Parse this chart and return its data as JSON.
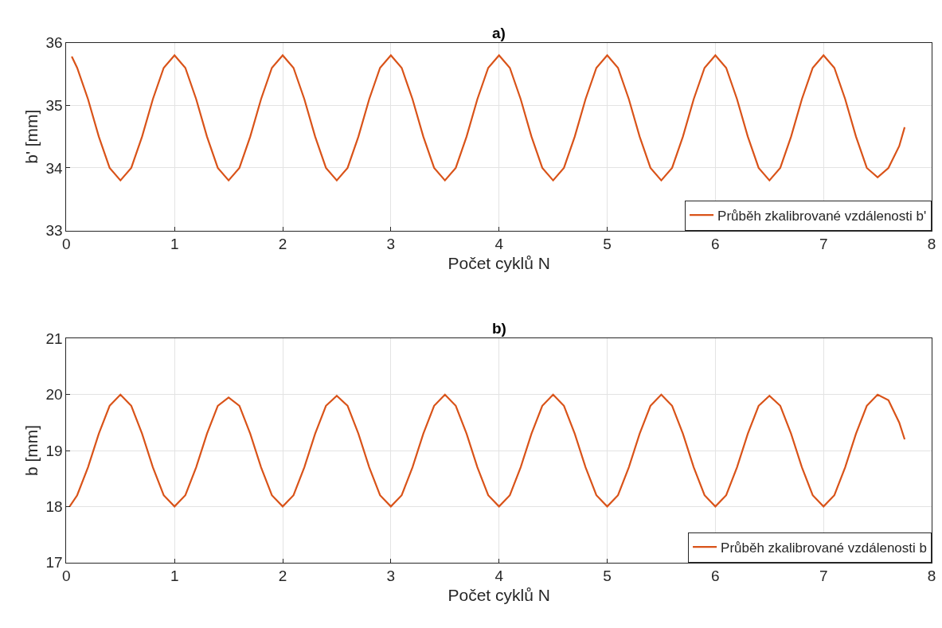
{
  "chart_data": [
    {
      "type": "line",
      "title": "a)",
      "xlabel": "Počet cyklů N",
      "ylabel": "b' [mm]",
      "xlim": [
        0,
        8
      ],
      "xticks": [
        0,
        1,
        2,
        3,
        4,
        5,
        6,
        7,
        8
      ],
      "ylim": [
        33,
        36
      ],
      "yticks": [
        33,
        34,
        35,
        36
      ],
      "grid": true,
      "legend": "bottom right",
      "x": [
        0.05,
        0.1,
        0.2,
        0.3,
        0.4,
        0.5,
        0.6,
        0.7,
        0.8,
        0.9,
        1.0,
        1.1,
        1.2,
        1.3,
        1.4,
        1.5,
        1.6,
        1.7,
        1.8,
        1.9,
        2.0,
        2.1,
        2.2,
        2.3,
        2.4,
        2.5,
        2.6,
        2.7,
        2.8,
        2.9,
        3.0,
        3.1,
        3.2,
        3.3,
        3.4,
        3.5,
        3.6,
        3.7,
        3.8,
        3.9,
        4.0,
        4.1,
        4.2,
        4.3,
        4.4,
        4.5,
        4.6,
        4.7,
        4.8,
        4.9,
        5.0,
        5.1,
        5.2,
        5.3,
        5.4,
        5.5,
        5.6,
        5.7,
        5.8,
        5.9,
        6.0,
        6.1,
        6.2,
        6.3,
        6.4,
        6.5,
        6.6,
        6.7,
        6.8,
        6.9,
        7.0,
        7.1,
        7.2,
        7.3,
        7.4,
        7.5,
        7.6,
        7.7,
        7.75
      ],
      "series": [
        {
          "name": "Průběh zkalibrované vzdálenosti b'",
          "color": "#d95319",
          "values": [
            35.78,
            35.6,
            35.1,
            34.5,
            34.0,
            33.8,
            34.0,
            34.5,
            35.1,
            35.6,
            35.8,
            35.6,
            35.1,
            34.5,
            34.0,
            33.8,
            34.0,
            34.5,
            35.1,
            35.6,
            35.8,
            35.6,
            35.1,
            34.5,
            34.0,
            33.8,
            34.0,
            34.5,
            35.1,
            35.6,
            35.8,
            35.6,
            35.1,
            34.5,
            34.0,
            33.8,
            34.0,
            34.5,
            35.1,
            35.6,
            35.8,
            35.6,
            35.1,
            34.5,
            34.0,
            33.8,
            34.0,
            34.5,
            35.1,
            35.6,
            35.8,
            35.6,
            35.1,
            34.5,
            34.0,
            33.8,
            34.0,
            34.5,
            35.1,
            35.6,
            35.8,
            35.6,
            35.1,
            34.5,
            34.0,
            33.8,
            34.0,
            34.5,
            35.1,
            35.6,
            35.8,
            35.6,
            35.1,
            34.5,
            34.0,
            33.85,
            34.0,
            34.35,
            34.65
          ]
        }
      ]
    },
    {
      "type": "line",
      "title": "b)",
      "xlabel": "Počet cyklů N",
      "ylabel": "b [mm]",
      "xlim": [
        0,
        8
      ],
      "xticks": [
        0,
        1,
        2,
        3,
        4,
        5,
        6,
        7,
        8
      ],
      "ylim": [
        17,
        21
      ],
      "yticks": [
        17,
        18,
        19,
        20,
        21
      ],
      "grid": true,
      "legend": "bottom right",
      "x": [
        0.03,
        0.1,
        0.2,
        0.3,
        0.4,
        0.5,
        0.6,
        0.7,
        0.8,
        0.9,
        1.0,
        1.1,
        1.2,
        1.3,
        1.4,
        1.5,
        1.6,
        1.7,
        1.8,
        1.9,
        2.0,
        2.1,
        2.2,
        2.3,
        2.4,
        2.5,
        2.6,
        2.7,
        2.8,
        2.9,
        3.0,
        3.1,
        3.2,
        3.3,
        3.4,
        3.5,
        3.6,
        3.7,
        3.8,
        3.9,
        4.0,
        4.1,
        4.2,
        4.3,
        4.4,
        4.5,
        4.6,
        4.7,
        4.8,
        4.9,
        5.0,
        5.1,
        5.2,
        5.3,
        5.4,
        5.5,
        5.6,
        5.7,
        5.8,
        5.9,
        6.0,
        6.1,
        6.2,
        6.3,
        6.4,
        6.5,
        6.6,
        6.7,
        6.8,
        6.9,
        7.0,
        7.1,
        7.2,
        7.3,
        7.4,
        7.5,
        7.6,
        7.7,
        7.75
      ],
      "series": [
        {
          "name": "Průběh zkalibrované vzdálenosti b",
          "color": "#d95319",
          "values": [
            18.0,
            18.2,
            18.7,
            19.3,
            19.8,
            20.0,
            19.8,
            19.3,
            18.7,
            18.2,
            18.0,
            18.2,
            18.7,
            19.3,
            19.8,
            19.95,
            19.8,
            19.3,
            18.7,
            18.2,
            18.0,
            18.2,
            18.7,
            19.3,
            19.8,
            19.98,
            19.8,
            19.3,
            18.7,
            18.2,
            18.0,
            18.2,
            18.7,
            19.3,
            19.8,
            20.0,
            19.8,
            19.3,
            18.7,
            18.2,
            18.0,
            18.2,
            18.7,
            19.3,
            19.8,
            20.0,
            19.8,
            19.3,
            18.7,
            18.2,
            18.0,
            18.2,
            18.7,
            19.3,
            19.8,
            20.0,
            19.8,
            19.3,
            18.7,
            18.2,
            18.0,
            18.2,
            18.7,
            19.3,
            19.8,
            19.98,
            19.8,
            19.3,
            18.7,
            18.2,
            18.0,
            18.2,
            18.7,
            19.3,
            19.8,
            20.0,
            19.9,
            19.5,
            19.2
          ]
        }
      ]
    }
  ]
}
